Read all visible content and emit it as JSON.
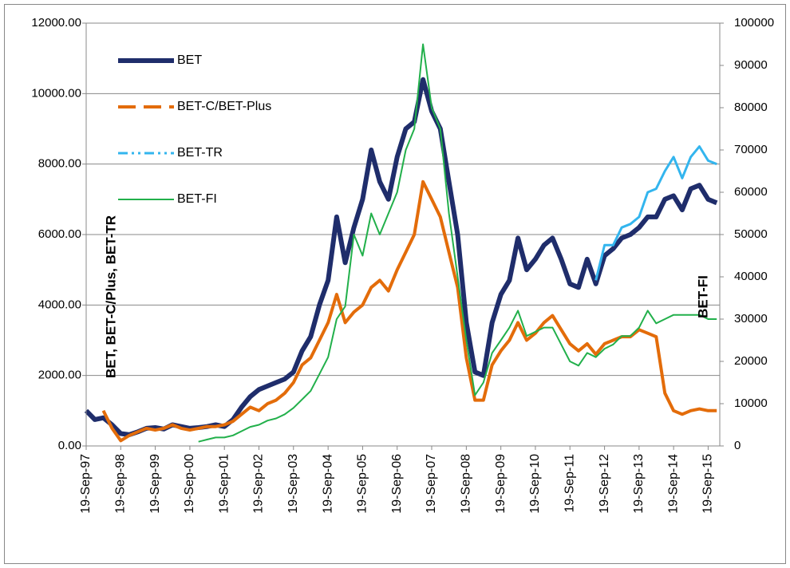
{
  "chart_data": {
    "type": "line",
    "y_label": "BET, BET-C/Plus, BET-TR",
    "y2_label": "BET-FI",
    "xlim": [
      "1997-09-19",
      "2016-01-20"
    ],
    "xticks": [
      {
        "value": "1997-09-19",
        "label": "19-Sep-97"
      },
      {
        "value": "1998-09-19",
        "label": "19-Sep-98"
      },
      {
        "value": "1999-09-19",
        "label": "19-Sep-99"
      },
      {
        "value": "2000-09-19",
        "label": "19-Sep-00"
      },
      {
        "value": "2001-09-19",
        "label": "19-Sep-01"
      },
      {
        "value": "2002-09-19",
        "label": "19-Sep-02"
      },
      {
        "value": "2003-09-19",
        "label": "19-Sep-03"
      },
      {
        "value": "2004-09-19",
        "label": "19-Sep-04"
      },
      {
        "value": "2005-09-19",
        "label": "19-Sep-05"
      },
      {
        "value": "2006-09-19",
        "label": "19-Sep-06"
      },
      {
        "value": "2007-09-19",
        "label": "19-Sep-07"
      },
      {
        "value": "2008-09-19",
        "label": "19-Sep-08"
      },
      {
        "value": "2009-09-19",
        "label": "19-Sep-09"
      },
      {
        "value": "2010-09-19",
        "label": "19-Sep-10"
      },
      {
        "value": "2011-09-19",
        "label": "19-Sep-11"
      },
      {
        "value": "2012-09-19",
        "label": "19-Sep-12"
      },
      {
        "value": "2013-09-19",
        "label": "19-Sep-13"
      },
      {
        "value": "2014-09-19",
        "label": "19-Sep-14"
      },
      {
        "value": "2015-09-19",
        "label": "19-Sep-15"
      }
    ],
    "ylim": [
      0,
      12000
    ],
    "yticks": [
      {
        "value": 0,
        "label": "0.00"
      },
      {
        "value": 2000,
        "label": "2000.00"
      },
      {
        "value": 4000,
        "label": "4000.00"
      },
      {
        "value": 6000,
        "label": "6000.00"
      },
      {
        "value": 8000,
        "label": "8000.00"
      },
      {
        "value": 10000,
        "label": "10000.00"
      },
      {
        "value": 12000,
        "label": "12000.00"
      }
    ],
    "y2lim": [
      0,
      100000
    ],
    "y2ticks": [
      0,
      10000,
      20000,
      30000,
      40000,
      50000,
      60000,
      70000,
      80000,
      90000,
      100000
    ],
    "grid": true,
    "legend": "upper left",
    "x": [
      "1997-09-19",
      "1997-12-19",
      "1998-03-19",
      "1998-06-19",
      "1998-09-19",
      "1998-12-19",
      "1999-03-19",
      "1999-06-19",
      "1999-09-19",
      "1999-12-19",
      "2000-03-19",
      "2000-06-19",
      "2000-09-19",
      "2000-12-19",
      "2001-03-19",
      "2001-06-19",
      "2001-09-19",
      "2001-12-19",
      "2002-03-19",
      "2002-06-19",
      "2002-09-19",
      "2002-12-19",
      "2003-03-19",
      "2003-06-19",
      "2003-09-19",
      "2003-12-19",
      "2004-03-19",
      "2004-06-19",
      "2004-09-19",
      "2004-12-19",
      "2005-03-19",
      "2005-06-19",
      "2005-09-19",
      "2005-12-19",
      "2006-03-19",
      "2006-06-19",
      "2006-09-19",
      "2006-12-19",
      "2007-03-19",
      "2007-06-19",
      "2007-09-19",
      "2007-12-19",
      "2008-03-19",
      "2008-06-19",
      "2008-09-19",
      "2008-12-19",
      "2009-03-19",
      "2009-06-19",
      "2009-09-19",
      "2009-12-19",
      "2010-03-19",
      "2010-06-19",
      "2010-09-19",
      "2010-12-19",
      "2011-03-19",
      "2011-06-19",
      "2011-09-19",
      "2011-12-19",
      "2012-03-19",
      "2012-06-19",
      "2012-09-19",
      "2012-12-19",
      "2013-03-19",
      "2013-06-19",
      "2013-09-19",
      "2013-12-19",
      "2014-03-19",
      "2014-06-19",
      "2014-09-19",
      "2014-12-19",
      "2015-03-19",
      "2015-06-19",
      "2015-09-19",
      "2015-12-19"
    ],
    "series": [
      {
        "name": "BET",
        "color": "#1f2d6b",
        "values": [
          1000,
          750,
          800,
          600,
          350,
          320,
          400,
          500,
          520,
          480,
          600,
          550,
          500,
          520,
          550,
          600,
          550,
          750,
          1100,
          1400,
          1600,
          1700,
          1800,
          1900,
          2100,
          2700,
          3100,
          4000,
          4700,
          6500,
          5200,
          6200,
          7000,
          8400,
          7500,
          7000,
          8200,
          9000,
          9200,
          10400,
          9500,
          9000,
          7500,
          6000,
          3500,
          2100,
          2000,
          3500,
          4300,
          4700,
          5900,
          5000,
          5300,
          5700,
          5900,
          5300,
          4600,
          4500,
          5300,
          4600,
          5400,
          5600,
          5900,
          6000,
          6200,
          6500,
          6500,
          7000,
          7100,
          6700,
          7300,
          7400,
          7000,
          6900
        ]
      },
      {
        "name": "BET-C/BET-Plus",
        "color": "#e36c0a",
        "values": [
          null,
          null,
          1000,
          500,
          150,
          300,
          400,
          500,
          450,
          500,
          600,
          500,
          450,
          500,
          550,
          550,
          600,
          700,
          900,
          1100,
          1000,
          1200,
          1300,
          1500,
          1800,
          2300,
          2500,
          3000,
          3500,
          4300,
          3500,
          3800,
          4000,
          4500,
          4700,
          4400,
          5000,
          5500,
          6000,
          7500,
          7000,
          6500,
          5500,
          4500,
          2500,
          1300,
          1300,
          2300,
          2700,
          3000,
          3500,
          3000,
          3200,
          3500,
          3700,
          3300,
          2900,
          2700,
          2900,
          2600,
          2900,
          3000,
          3100,
          3100,
          3300,
          3200,
          3100,
          1500,
          1000,
          900,
          1000,
          1050,
          1000,
          1000
        ]
      },
      {
        "name": "BET-TR",
        "color": "#33b5ee",
        "values": [
          null,
          null,
          null,
          null,
          null,
          null,
          null,
          null,
          null,
          null,
          null,
          null,
          null,
          null,
          null,
          null,
          null,
          null,
          null,
          null,
          null,
          null,
          null,
          null,
          null,
          null,
          null,
          null,
          null,
          null,
          null,
          null,
          null,
          null,
          null,
          null,
          null,
          null,
          null,
          null,
          null,
          null,
          null,
          null,
          null,
          null,
          null,
          null,
          null,
          null,
          null,
          null,
          null,
          null,
          null,
          null,
          null,
          null,
          null,
          4700,
          5700,
          5700,
          6200,
          6300,
          6500,
          7200,
          7300,
          7800,
          8200,
          7600,
          8200,
          8500,
          8100,
          8000
        ]
      },
      {
        "name": "BET-FI",
        "color": "#22b04b",
        "axis": "y2",
        "values": [
          null,
          null,
          null,
          null,
          null,
          null,
          null,
          null,
          null,
          null,
          null,
          null,
          null,
          1000,
          1500,
          2000,
          2000,
          2500,
          3500,
          4500,
          5000,
          6000,
          6500,
          7500,
          9000,
          11000,
          13000,
          17000,
          21000,
          30000,
          33000,
          50000,
          45000,
          55000,
          50000,
          55000,
          60000,
          70000,
          75000,
          95000,
          80000,
          75000,
          55000,
          40000,
          25000,
          12000,
          15000,
          22000,
          25000,
          28000,
          32000,
          26000,
          27000,
          28000,
          28000,
          24000,
          20000,
          19000,
          22000,
          21000,
          23000,
          24000,
          26000,
          26000,
          28000,
          32000,
          29000,
          30000,
          31000,
          31000,
          31000,
          31000,
          30000,
          30000
        ]
      }
    ]
  }
}
